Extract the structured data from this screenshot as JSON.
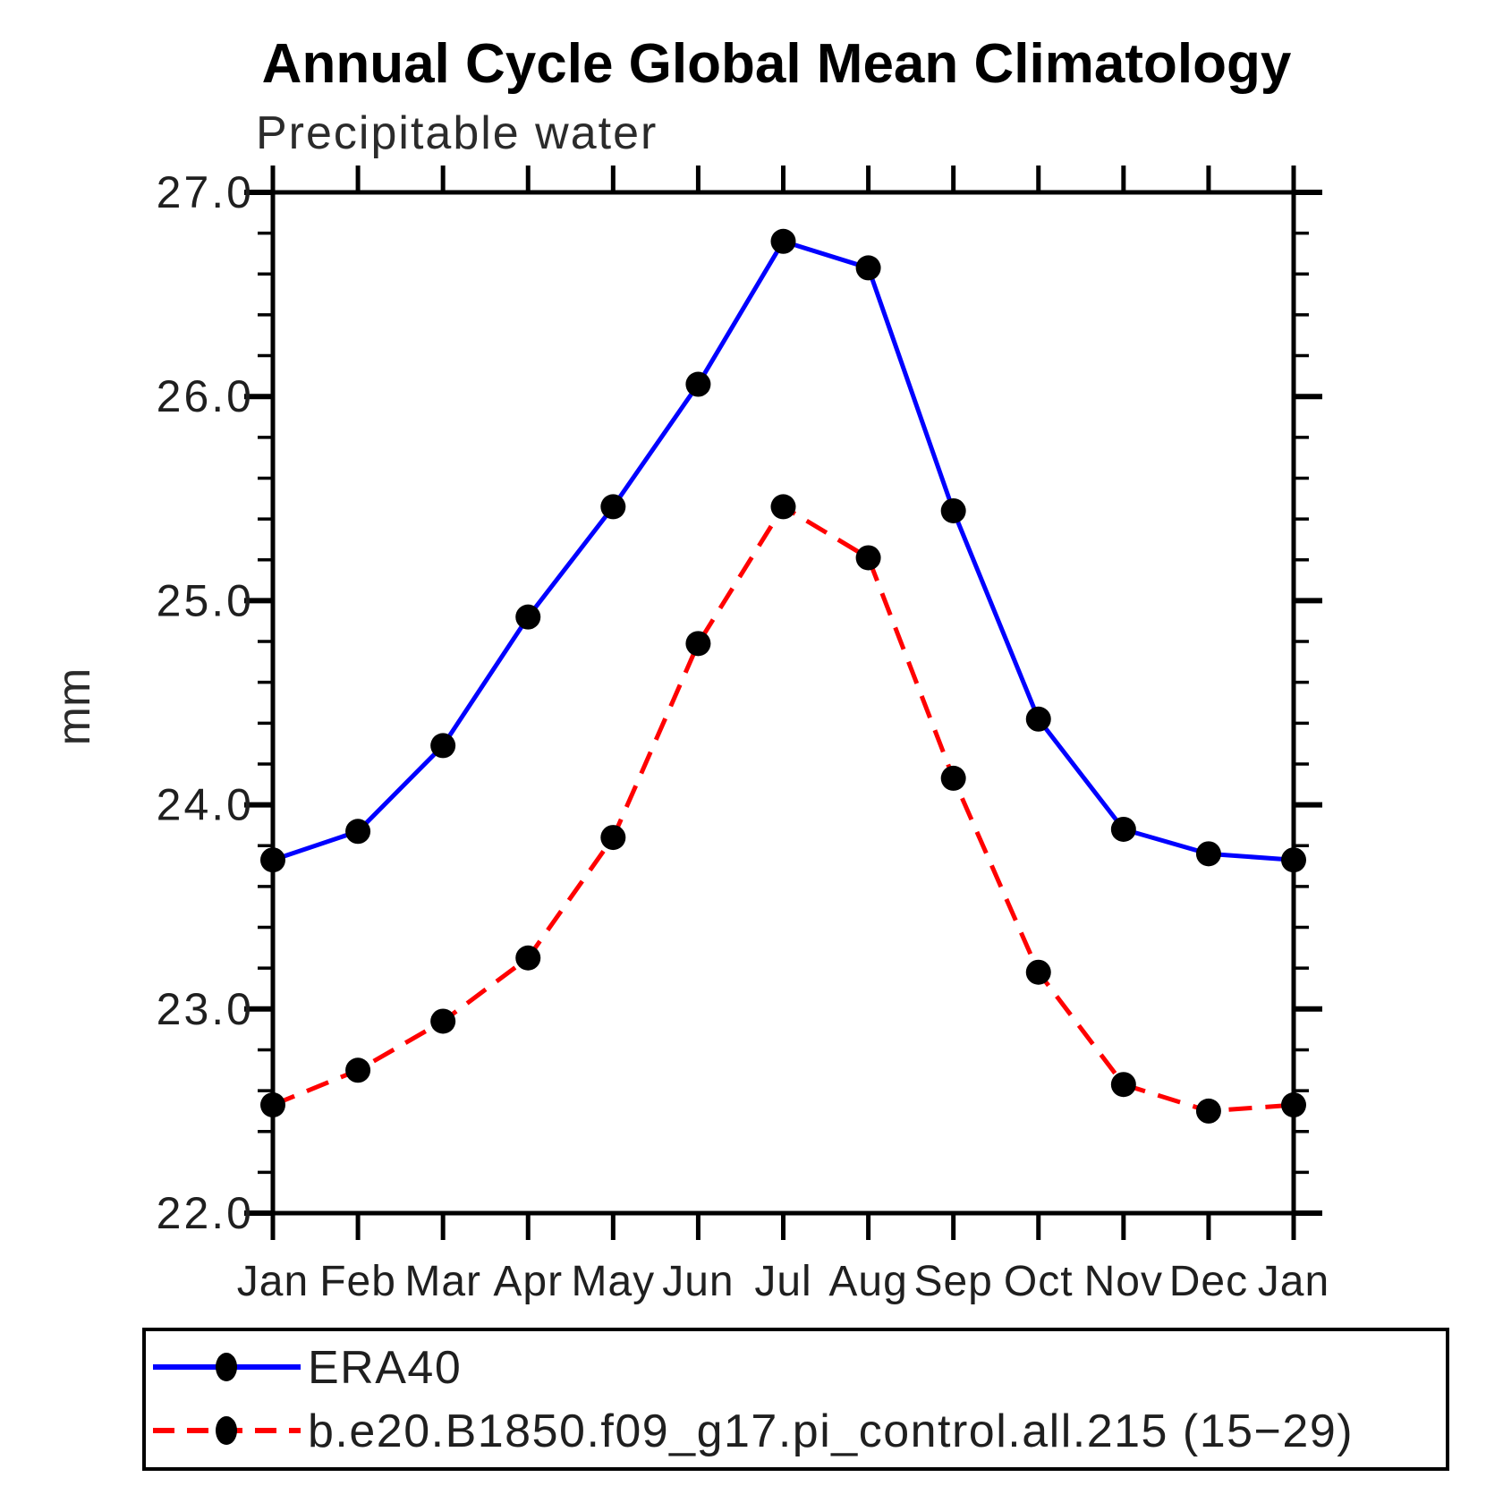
{
  "page": {
    "background": "#ffffff"
  },
  "chart_data": {
    "type": "line",
    "title": "Annual Cycle Global Mean Climatology",
    "subtitle": "Precipitable water",
    "ylabel": "mm",
    "xlabel": "",
    "x_categories": [
      "Jan",
      "Feb",
      "Mar",
      "Apr",
      "May",
      "Jun",
      "Jul",
      "Aug",
      "Sep",
      "Oct",
      "Nov",
      "Dec",
      "Jan"
    ],
    "ylim": [
      22.0,
      27.0
    ],
    "ytick_major_step": 1.0,
    "ytick_minor_step": 0.2,
    "ytick_labels": [
      "22.0",
      "23.0",
      "24.0",
      "25.0",
      "26.0",
      "27.0"
    ],
    "grid": false,
    "tick_direction": "out",
    "axis_color": "#000000",
    "marker_color": "#000000",
    "legend_position": "bottom-left",
    "series": [
      {
        "name": "ERA40",
        "line_color": "#0000ff",
        "line_style": "solid",
        "marker": "filled-circle",
        "values": [
          23.73,
          23.87,
          24.29,
          24.92,
          25.46,
          26.06,
          26.76,
          26.63,
          25.44,
          24.42,
          23.88,
          23.76,
          23.73
        ]
      },
      {
        "name": "b.e20.B1850.f09_g17.pi_control.all.215 (15−29)",
        "line_color": "#ff0000",
        "line_style": "dashed",
        "marker": "filled-circle",
        "values": [
          22.53,
          22.7,
          22.94,
          23.25,
          23.84,
          24.79,
          25.46,
          25.21,
          24.13,
          23.18,
          22.63,
          22.5,
          22.53
        ]
      }
    ]
  }
}
